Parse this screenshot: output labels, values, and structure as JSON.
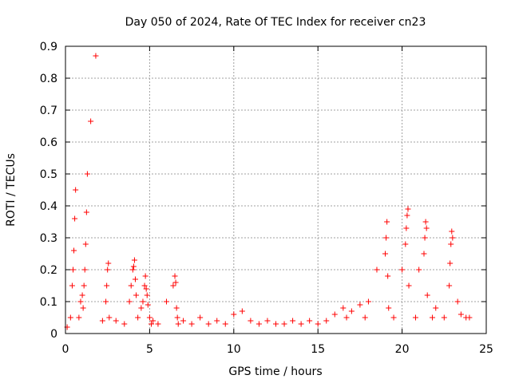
{
  "chart_data": {
    "type": "scatter",
    "title": "Day 050 of 2024, Rate Of TEC Index for receiver cn23",
    "xlabel": "GPS time / hours",
    "ylabel": "ROTI / TECUs",
    "xlim": [
      0,
      25
    ],
    "ylim": [
      0,
      0.9
    ],
    "xticks": [
      "0",
      "5",
      "10",
      "15",
      "20",
      "25"
    ],
    "yticks": [
      "0",
      "0.1",
      "0.2",
      "0.3",
      "0.4",
      "0.5",
      "0.6",
      "0.7",
      "0.8",
      "0.9"
    ],
    "grid": true,
    "marker": "+",
    "color": "#ff0000",
    "series": [
      {
        "x": [
          0.1,
          0.3,
          0.4,
          0.45,
          0.5,
          0.55,
          0.6,
          0.8,
          0.9,
          1.0,
          1.05,
          1.1,
          1.15,
          1.2,
          1.25,
          1.3,
          1.5,
          1.8,
          2.2,
          2.4,
          2.45,
          2.5,
          2.55,
          2.6,
          3.0,
          3.5,
          3.8,
          3.9,
          4.0,
          4.05,
          4.1,
          4.15,
          4.2,
          4.3,
          4.5,
          4.6,
          4.7,
          4.75,
          4.8,
          4.85,
          4.9,
          5.0,
          5.1,
          5.2,
          5.5,
          6.0,
          6.4,
          6.5,
          6.55,
          6.6,
          6.65,
          6.7,
          7.0,
          7.5,
          8.0,
          8.5,
          9.0,
          9.5,
          10.0,
          10.5,
          11.0,
          11.5,
          12.0,
          12.5,
          13.0,
          13.5,
          14.0,
          14.5,
          15.0,
          15.5,
          16.0,
          16.5,
          16.7,
          17.0,
          17.5,
          17.8,
          18.0,
          18.5,
          19.0,
          19.05,
          19.1,
          19.15,
          19.2,
          19.5,
          20.0,
          20.2,
          20.25,
          20.3,
          20.35,
          20.4,
          20.8,
          21.0,
          21.3,
          21.35,
          21.4,
          21.45,
          21.5,
          21.8,
          22.0,
          22.5,
          22.8,
          22.85,
          22.9,
          22.95,
          23.0,
          23.3,
          23.5,
          23.8,
          24.0
        ],
        "y": [
          0.02,
          0.05,
          0.15,
          0.2,
          0.26,
          0.36,
          0.45,
          0.05,
          0.1,
          0.12,
          0.08,
          0.15,
          0.2,
          0.28,
          0.38,
          0.5,
          0.665,
          0.87,
          0.04,
          0.1,
          0.15,
          0.2,
          0.22,
          0.05,
          0.04,
          0.03,
          0.1,
          0.15,
          0.2,
          0.21,
          0.23,
          0.17,
          0.12,
          0.05,
          0.08,
          0.1,
          0.15,
          0.18,
          0.14,
          0.12,
          0.09,
          0.05,
          0.03,
          0.04,
          0.03,
          0.1,
          0.15,
          0.18,
          0.16,
          0.08,
          0.05,
          0.03,
          0.04,
          0.03,
          0.05,
          0.03,
          0.04,
          0.03,
          0.06,
          0.07,
          0.04,
          0.03,
          0.04,
          0.03,
          0.03,
          0.04,
          0.03,
          0.04,
          0.03,
          0.04,
          0.06,
          0.08,
          0.05,
          0.07,
          0.09,
          0.05,
          0.1,
          0.2,
          0.25,
          0.3,
          0.35,
          0.18,
          0.08,
          0.05,
          0.2,
          0.28,
          0.33,
          0.37,
          0.39,
          0.15,
          0.05,
          0.2,
          0.25,
          0.3,
          0.35,
          0.33,
          0.12,
          0.05,
          0.08,
          0.05,
          0.15,
          0.22,
          0.28,
          0.32,
          0.3,
          0.1,
          0.06,
          0.05,
          0.05
        ]
      }
    ]
  }
}
